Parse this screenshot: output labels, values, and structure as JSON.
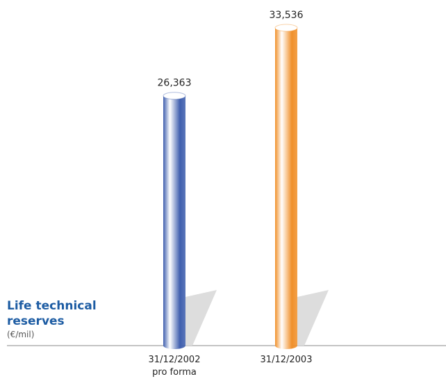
{
  "chart_data": {
    "type": "bar",
    "title": "Life technical reserves",
    "subtitle": "(€/mil)",
    "categories": [
      "31/12/2002\npro forma",
      "31/12/2003"
    ],
    "values": [
      26363,
      33536
    ],
    "value_labels": [
      "26,363",
      "33,536"
    ],
    "colors": [
      "#3f5fae",
      "#f0902a"
    ]
  }
}
